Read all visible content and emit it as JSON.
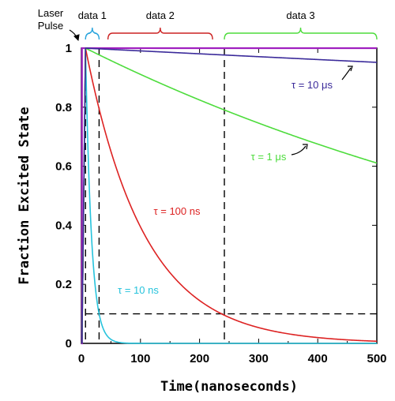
{
  "chart_data": {
    "type": "line",
    "xlabel": "Time(nanoseconds)",
    "ylabel": "Fraction Excited State",
    "xlim": [
      0,
      500
    ],
    "ylim": [
      0,
      1
    ],
    "x_ticks": [
      "0",
      "100",
      "200",
      "300",
      "400",
      "500"
    ],
    "y_ticks": [
      "0",
      "0.2",
      "0.4",
      "0.6",
      "0.8",
      "1"
    ],
    "series": [
      {
        "name": "τ = 10 μs",
        "tau_ns": 10000,
        "color": "#3a2a9a"
      },
      {
        "name": "τ = 1 μs",
        "tau_ns": 1000,
        "color": "#4ddc3c"
      },
      {
        "name": "τ = 100 ns",
        "tau_ns": 100,
        "color": "#dd2222"
      },
      {
        "name": "τ = 10 ns",
        "tau_ns": 10,
        "color": "#26c3dc"
      }
    ],
    "laser_pulse": {
      "label_line1": "Laser",
      "label_line2": "Pulse",
      "color": "#a020c0",
      "start_ns": 1,
      "end_ns": 7
    },
    "data_windows": [
      {
        "label": "data 1",
        "start_ns": 7,
        "end_ns": 30,
        "color": "#26a3dc"
      },
      {
        "label": "data 2",
        "start_ns": 45,
        "end_ns": 222,
        "color": "#cc2222"
      },
      {
        "label": "data 3",
        "start_ns": 242,
        "end_ns": 500,
        "color": "#4ddc3c"
      }
    ],
    "markers": {
      "vertical_lines_ns": [
        7,
        30,
        242
      ],
      "horizontal_line_y": 0.1
    }
  }
}
